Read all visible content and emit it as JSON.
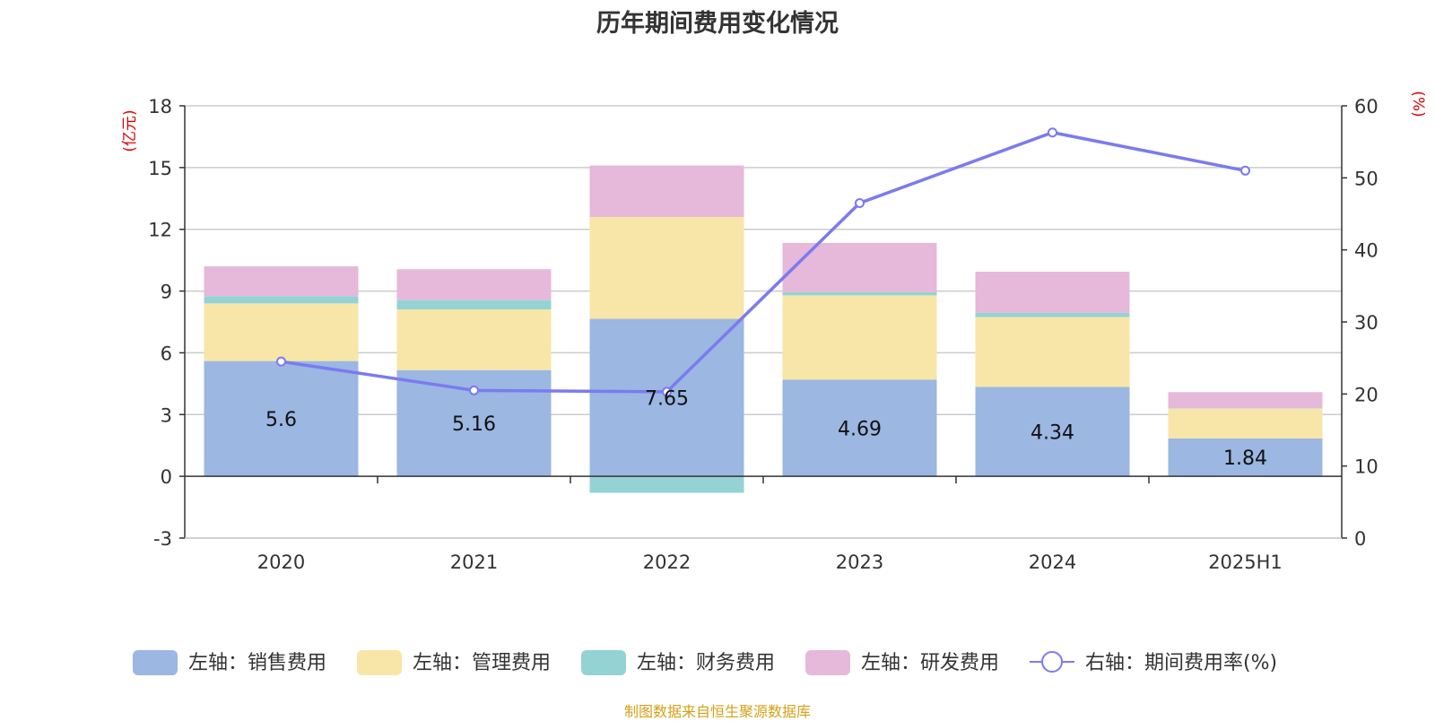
{
  "title": "历年期间费用变化情况",
  "source": "制图数据来自恒生聚源数据库",
  "colors": {
    "sales": "#9bb7e2",
    "admin": "#f7e6a7",
    "finance": "#94d3d4",
    "rd": "#e6b8d9",
    "rate_line": "#7b7bef",
    "axis_unit": "#e00000",
    "grid": "#cccccc"
  },
  "chart_data": {
    "type": "bar",
    "stacked": true,
    "categories": [
      "2020",
      "2021",
      "2022",
      "2023",
      "2024",
      "2025H1"
    ],
    "y_left": {
      "unit_label": "(亿元)",
      "ylim": [
        -3,
        18
      ],
      "ticks": [
        "-3",
        "0",
        "3",
        "6",
        "9",
        "12",
        "15",
        "18"
      ]
    },
    "y_right": {
      "unit_label": "(%)",
      "ylim": [
        0,
        60
      ],
      "ticks": [
        "0",
        "10",
        "20",
        "30",
        "40",
        "50",
        "60"
      ]
    },
    "grid": true,
    "legend_position": "bottom",
    "series": [
      {
        "key": "sales",
        "name": "左轴：销售费用",
        "axis": "left",
        "type": "bar",
        "values": [
          5.6,
          5.16,
          7.65,
          4.69,
          4.34,
          1.84
        ],
        "labels": [
          "5.6",
          "5.16",
          "7.65",
          "4.69",
          "4.34",
          "1.84"
        ]
      },
      {
        "key": "admin",
        "name": "左轴：管理费用",
        "axis": "left",
        "type": "bar",
        "values": [
          2.8,
          2.95,
          4.95,
          4.1,
          3.4,
          1.45
        ]
      },
      {
        "key": "finance",
        "name": "左轴：财务费用",
        "axis": "left",
        "type": "bar",
        "values": [
          0.35,
          0.45,
          -0.8,
          0.15,
          0.2,
          0.02
        ]
      },
      {
        "key": "rd",
        "name": "左轴：研发费用",
        "axis": "left",
        "type": "bar",
        "values": [
          1.45,
          1.5,
          2.5,
          2.4,
          2.0,
          0.78
        ]
      },
      {
        "key": "rate_line",
        "name": "右轴：期间费用率(%)",
        "axis": "right",
        "type": "line",
        "values": [
          24.5,
          20.5,
          20.3,
          46.5,
          56.3,
          51.0
        ]
      }
    ]
  }
}
